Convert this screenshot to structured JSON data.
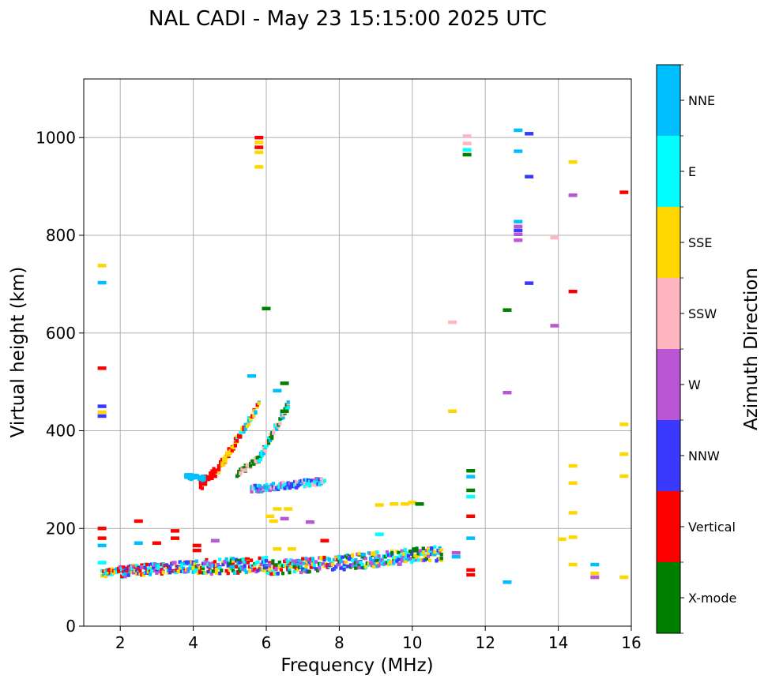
{
  "chart_data": {
    "type": "scatter",
    "title": "NAL CADI - May 23 15:15:00 2025 UTC",
    "xlabel": "Frequency (MHz)",
    "ylabel": "Virtual height (km)",
    "xlim": [
      1,
      16
    ],
    "ylim": [
      0,
      1120
    ],
    "xticks": [
      2,
      4,
      6,
      8,
      10,
      12,
      14,
      16
    ],
    "yticks": [
      0,
      200,
      400,
      600,
      800,
      1000
    ],
    "grid": true,
    "colorbar": {
      "label": "Azimuth Direction",
      "categories": [
        {
          "name": "X-mode",
          "color": "#008000"
        },
        {
          "name": "Vertical",
          "color": "#ff0000"
        },
        {
          "name": "NNW",
          "color": "#3a3aff"
        },
        {
          "name": "W",
          "color": "#ba55d3"
        },
        {
          "name": "SSW",
          "color": "#ffb6c1"
        },
        {
          "name": "SSE",
          "color": "#ffd700"
        },
        {
          "name": "E",
          "color": "#00ffff"
        },
        {
          "name": "NNE",
          "color": "#00bfff"
        }
      ]
    },
    "echo_groups": [
      {
        "name": "E-layer trace",
        "segments": [
          {
            "f0": 1.5,
            "f1": 2.0,
            "h0": 105,
            "h1": 112,
            "mix": [
              "Vertical",
              "E",
              "SSE",
              "NNE"
            ],
            "spread": 14
          },
          {
            "f0": 2.0,
            "f1": 4.0,
            "h0": 108,
            "h1": 120,
            "mix": [
              "Vertical",
              "NNE",
              "E",
              "SSE",
              "NNW",
              "W"
            ],
            "spread": 22
          },
          {
            "f0": 4.0,
            "f1": 6.0,
            "h0": 115,
            "h1": 122,
            "mix": [
              "Vertical",
              "X-mode",
              "SSE",
              "NNE",
              "E",
              "NNW",
              "W"
            ],
            "spread": 30
          },
          {
            "f0": 6.0,
            "f1": 8.0,
            "h0": 115,
            "h1": 125,
            "mix": [
              "E",
              "NNE",
              "SSE",
              "NNW",
              "Vertical",
              "W",
              "X-mode"
            ],
            "spread": 28
          },
          {
            "f0": 8.0,
            "f1": 10.8,
            "h0": 125,
            "h1": 145,
            "mix": [
              "NNE",
              "E",
              "X-mode",
              "NNW",
              "W",
              "SSE"
            ],
            "spread": 30
          }
        ]
      },
      {
        "name": "F-layer ordinary trace",
        "segments": [
          {
            "f0": 4.2,
            "f1": 4.7,
            "h0": 285,
            "h1": 320,
            "mix": [
              "Vertical"
            ],
            "spread": 20
          },
          {
            "f0": 4.7,
            "f1": 5.2,
            "h0": 320,
            "h1": 380,
            "mix": [
              "Vertical",
              "SSE"
            ],
            "spread": 18
          },
          {
            "f0": 5.2,
            "f1": 5.8,
            "h0": 380,
            "h1": 450,
            "mix": [
              "NNE",
              "E",
              "SSE",
              "Vertical"
            ],
            "spread": 14
          }
        ]
      },
      {
        "name": "F-layer extraordinary trace",
        "segments": [
          {
            "f0": 5.2,
            "f1": 5.8,
            "h0": 310,
            "h1": 340,
            "mix": [
              "X-mode",
              "SSW"
            ],
            "spread": 12
          },
          {
            "f0": 5.8,
            "f1": 6.6,
            "h0": 340,
            "h1": 450,
            "mix": [
              "X-mode",
              "SSW",
              "E",
              "NNE"
            ],
            "spread": 16
          }
        ]
      },
      {
        "name": "F spread echoes",
        "segments": [
          {
            "f0": 3.8,
            "f1": 4.3,
            "h0": 305,
            "h1": 300,
            "mix": [
              "NNE"
            ],
            "spread": 10
          },
          {
            "f0": 5.6,
            "f1": 7.6,
            "h0": 278,
            "h1": 295,
            "mix": [
              "E",
              "NNE",
              "W",
              "NNW",
              "SSW"
            ],
            "spread": 14
          }
        ]
      },
      {
        "name": "Scattered echoes",
        "points": [
          {
            "f": 1.5,
            "h": 738,
            "az": "SSE"
          },
          {
            "f": 1.5,
            "h": 703,
            "az": "NNE"
          },
          {
            "f": 1.5,
            "h": 528,
            "az": "Vertical"
          },
          {
            "f": 1.5,
            "h": 450,
            "az": "NNW"
          },
          {
            "f": 1.5,
            "h": 438,
            "az": "SSE"
          },
          {
            "f": 1.5,
            "h": 430,
            "az": "NNW"
          },
          {
            "f": 1.5,
            "h": 200,
            "az": "Vertical"
          },
          {
            "f": 1.5,
            "h": 180,
            "az": "Vertical"
          },
          {
            "f": 1.5,
            "h": 165,
            "az": "NNE"
          },
          {
            "f": 1.5,
            "h": 130,
            "az": "E"
          },
          {
            "f": 2.5,
            "h": 215,
            "az": "Vertical"
          },
          {
            "f": 2.5,
            "h": 170,
            "az": "NNE"
          },
          {
            "f": 3.0,
            "h": 170,
            "az": "Vertical"
          },
          {
            "f": 3.5,
            "h": 195,
            "az": "Vertical"
          },
          {
            "f": 3.5,
            "h": 180,
            "az": "Vertical"
          },
          {
            "f": 4.1,
            "h": 165,
            "az": "Vertical"
          },
          {
            "f": 4.1,
            "h": 155,
            "az": "Vertical"
          },
          {
            "f": 4.6,
            "h": 175,
            "az": "W"
          },
          {
            "f": 5.8,
            "h": 1000,
            "az": "Vertical"
          },
          {
            "f": 5.8,
            "h": 990,
            "az": "SSE"
          },
          {
            "f": 5.8,
            "h": 980,
            "az": "Vertical"
          },
          {
            "f": 5.8,
            "h": 970,
            "az": "SSE"
          },
          {
            "f": 5.8,
            "h": 940,
            "az": "SSE"
          },
          {
            "f": 6.0,
            "h": 650,
            "az": "X-mode"
          },
          {
            "f": 5.6,
            "h": 512,
            "az": "NNE"
          },
          {
            "f": 6.3,
            "h": 482,
            "az": "NNE"
          },
          {
            "f": 6.5,
            "h": 497,
            "az": "X-mode"
          },
          {
            "f": 6.5,
            "h": 440,
            "az": "X-mode"
          },
          {
            "f": 6.1,
            "h": 225,
            "az": "SSE"
          },
          {
            "f": 6.2,
            "h": 215,
            "az": "SSE"
          },
          {
            "f": 6.3,
            "h": 240,
            "az": "SSE"
          },
          {
            "f": 6.6,
            "h": 240,
            "az": "SSE"
          },
          {
            "f": 6.5,
            "h": 220,
            "az": "W"
          },
          {
            "f": 7.2,
            "h": 213,
            "az": "W"
          },
          {
            "f": 6.3,
            "h": 158,
            "az": "SSE"
          },
          {
            "f": 6.7,
            "h": 158,
            "az": "SSE"
          },
          {
            "f": 7.6,
            "h": 175,
            "az": "Vertical"
          },
          {
            "f": 9.1,
            "h": 248,
            "az": "SSE"
          },
          {
            "f": 9.5,
            "h": 250,
            "az": "SSE"
          },
          {
            "f": 9.8,
            "h": 250,
            "az": "SSE"
          },
          {
            "f": 10.0,
            "h": 253,
            "az": "SSE"
          },
          {
            "f": 10.2,
            "h": 250,
            "az": "X-mode"
          },
          {
            "f": 9.1,
            "h": 188,
            "az": "E"
          },
          {
            "f": 11.1,
            "h": 622,
            "az": "SSW"
          },
          {
            "f": 11.1,
            "h": 440,
            "az": "SSE"
          },
          {
            "f": 11.5,
            "h": 1003,
            "az": "SSW"
          },
          {
            "f": 11.5,
            "h": 988,
            "az": "SSW"
          },
          {
            "f": 11.5,
            "h": 975,
            "az": "E"
          },
          {
            "f": 11.5,
            "h": 965,
            "az": "X-mode"
          },
          {
            "f": 11.6,
            "h": 318,
            "az": "X-mode"
          },
          {
            "f": 11.6,
            "h": 306,
            "az": "NNE"
          },
          {
            "f": 11.6,
            "h": 278,
            "az": "X-mode"
          },
          {
            "f": 11.6,
            "h": 265,
            "az": "E"
          },
          {
            "f": 11.6,
            "h": 225,
            "az": "Vertical"
          },
          {
            "f": 11.6,
            "h": 180,
            "az": "NNE"
          },
          {
            "f": 11.6,
            "h": 115,
            "az": "Vertical"
          },
          {
            "f": 11.6,
            "h": 105,
            "az": "Vertical"
          },
          {
            "f": 11.2,
            "h": 150,
            "az": "W"
          },
          {
            "f": 11.2,
            "h": 142,
            "az": "NNE"
          },
          {
            "f": 12.9,
            "h": 1015,
            "az": "NNE"
          },
          {
            "f": 13.2,
            "h": 1008,
            "az": "NNW"
          },
          {
            "f": 12.9,
            "h": 972,
            "az": "NNE"
          },
          {
            "f": 13.2,
            "h": 920,
            "az": "NNW"
          },
          {
            "f": 12.9,
            "h": 828,
            "az": "NNE"
          },
          {
            "f": 12.9,
            "h": 818,
            "az": "W"
          },
          {
            "f": 12.9,
            "h": 810,
            "az": "NNW"
          },
          {
            "f": 12.9,
            "h": 802,
            "az": "W"
          },
          {
            "f": 12.9,
            "h": 790,
            "az": "W"
          },
          {
            "f": 13.2,
            "h": 702,
            "az": "NNW"
          },
          {
            "f": 12.6,
            "h": 647,
            "az": "X-mode"
          },
          {
            "f": 12.6,
            "h": 478,
            "az": "W"
          },
          {
            "f": 12.6,
            "h": 90,
            "az": "NNE"
          },
          {
            "f": 14.4,
            "h": 950,
            "az": "SSE"
          },
          {
            "f": 14.4,
            "h": 882,
            "az": "W"
          },
          {
            "f": 13.9,
            "h": 795,
            "az": "SSW"
          },
          {
            "f": 14.4,
            "h": 685,
            "az": "Vertical"
          },
          {
            "f": 13.9,
            "h": 615,
            "az": "W"
          },
          {
            "f": 14.4,
            "h": 328,
            "az": "SSE"
          },
          {
            "f": 14.4,
            "h": 293,
            "az": "SSE"
          },
          {
            "f": 14.4,
            "h": 232,
            "az": "SSE"
          },
          {
            "f": 14.4,
            "h": 182,
            "az": "SSE"
          },
          {
            "f": 14.1,
            "h": 178,
            "az": "SSE"
          },
          {
            "f": 14.4,
            "h": 126,
            "az": "SSE"
          },
          {
            "f": 15.0,
            "h": 126,
            "az": "NNE"
          },
          {
            "f": 15.0,
            "h": 108,
            "az": "SSE"
          },
          {
            "f": 15.0,
            "h": 100,
            "az": "W"
          },
          {
            "f": 15.8,
            "h": 888,
            "az": "Vertical"
          },
          {
            "f": 15.8,
            "h": 413,
            "az": "SSE"
          },
          {
            "f": 15.8,
            "h": 352,
            "az": "SSE"
          },
          {
            "f": 15.8,
            "h": 307,
            "az": "SSE"
          },
          {
            "f": 15.8,
            "h": 100,
            "az": "SSE"
          }
        ]
      }
    ]
  }
}
